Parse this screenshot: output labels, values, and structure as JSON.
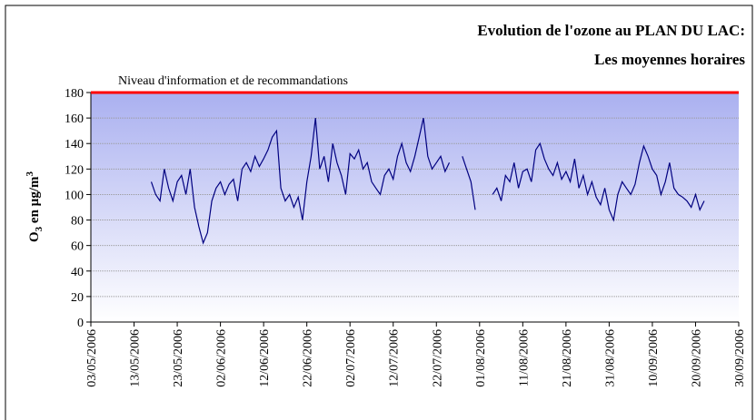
{
  "chart_data": {
    "type": "line",
    "title": [
      "Evolution de l'ozone au PLAN DU LAC:",
      "Les moyennes horaires"
    ],
    "ylabel": {
      "text": "O",
      "sub": "3",
      "mid": " en µg/m",
      "sup": "3"
    },
    "threshold": {
      "value": 180,
      "label": "Niveau d'information et de recommandations",
      "color": "#ff0000"
    },
    "xlim": [
      "03/05/2006",
      "30/09/2006"
    ],
    "xticks": [
      "03/05/2006",
      "13/05/2006",
      "23/05/2006",
      "02/06/2006",
      "12/06/2006",
      "22/06/2006",
      "02/07/2006",
      "12/07/2006",
      "22/07/2006",
      "01/08/2006",
      "11/08/2006",
      "21/08/2006",
      "31/08/2006",
      "10/09/2006",
      "20/09/2006",
      "30/09/2006"
    ],
    "ylim": [
      0,
      180
    ],
    "yticks": [
      0,
      20,
      40,
      60,
      80,
      100,
      120,
      140,
      160,
      180
    ],
    "grid": true,
    "x": [
      "17/05/2006",
      "18/05/2006",
      "19/05/2006",
      "20/05/2006",
      "21/05/2006",
      "22/05/2006",
      "23/05/2006",
      "24/05/2006",
      "25/05/2006",
      "26/05/2006",
      "27/05/2006",
      "28/05/2006",
      "29/05/2006",
      "30/05/2006",
      "31/05/2006",
      "01/06/2006",
      "02/06/2006",
      "03/06/2006",
      "04/06/2006",
      "05/06/2006",
      "06/06/2006",
      "07/06/2006",
      "08/06/2006",
      "09/06/2006",
      "10/06/2006",
      "11/06/2006",
      "12/06/2006",
      "13/06/2006",
      "14/06/2006",
      "15/06/2006",
      "16/06/2006",
      "17/06/2006",
      "18/06/2006",
      "19/06/2006",
      "20/06/2006",
      "21/06/2006",
      "22/06/2006",
      "23/06/2006",
      "24/06/2006",
      "25/06/2006",
      "26/06/2006",
      "27/06/2006",
      "28/06/2006",
      "29/06/2006",
      "30/06/2006",
      "01/07/2006",
      "02/07/2006",
      "03/07/2006",
      "04/07/2006",
      "05/07/2006",
      "06/07/2006",
      "07/07/2006",
      "08/07/2006",
      "09/07/2006",
      "10/07/2006",
      "11/07/2006",
      "12/07/2006",
      "13/07/2006",
      "14/07/2006",
      "15/07/2006",
      "16/07/2006",
      "17/07/2006",
      "18/07/2006",
      "19/07/2006",
      "20/07/2006",
      "21/07/2006",
      "22/07/2006",
      "23/07/2006",
      "24/07/2006",
      "25/07/2006",
      "26/07/2006",
      "27/07/2006",
      "28/07/2006",
      "29/07/2006",
      "30/07/2006",
      "31/07/2006",
      "01/08/2006",
      "02/08/2006",
      "03/08/2006",
      "04/08/2006",
      "05/08/2006",
      "06/08/2006",
      "07/08/2006",
      "08/08/2006",
      "09/08/2006",
      "10/08/2006",
      "11/08/2006",
      "12/08/2006",
      "13/08/2006",
      "14/08/2006",
      "15/08/2006",
      "16/08/2006",
      "17/08/2006",
      "18/08/2006",
      "19/08/2006",
      "20/08/2006",
      "21/08/2006",
      "22/08/2006",
      "23/08/2006",
      "24/08/2006",
      "25/08/2006",
      "26/08/2006",
      "27/08/2006",
      "28/08/2006",
      "29/08/2006",
      "30/08/2006",
      "31/08/2006",
      "01/09/2006",
      "02/09/2006",
      "03/09/2006",
      "04/09/2006",
      "05/09/2006",
      "06/09/2006",
      "07/09/2006",
      "08/09/2006",
      "09/09/2006",
      "10/09/2006",
      "11/09/2006",
      "12/09/2006",
      "13/09/2006",
      "14/09/2006",
      "15/09/2006",
      "16/09/2006",
      "17/09/2006",
      "18/09/2006",
      "19/09/2006",
      "20/09/2006",
      "21/09/2006",
      "22/09/2006"
    ],
    "series": [
      {
        "color": "#000080",
        "values": [
          110,
          100,
          95,
          120,
          105,
          95,
          110,
          115,
          100,
          120,
          90,
          75,
          62,
          70,
          95,
          105,
          110,
          100,
          108,
          112,
          95,
          120,
          125,
          118,
          130,
          122,
          128,
          135,
          145,
          150,
          105,
          95,
          100,
          90,
          98,
          80,
          110,
          130,
          160,
          120,
          130,
          110,
          140,
          125,
          115,
          100,
          132,
          128,
          135,
          120,
          125,
          110,
          105,
          100,
          115,
          120,
          112,
          130,
          140,
          125,
          118,
          130,
          145,
          160,
          130,
          120,
          125,
          130,
          118,
          125,
          null,
          null,
          130,
          120,
          110,
          88,
          null,
          null,
          null,
          100,
          105,
          95,
          115,
          110,
          125,
          105,
          118,
          120,
          110,
          135,
          140,
          128,
          120,
          115,
          125,
          112,
          118,
          110,
          128,
          105,
          115,
          100,
          110,
          98,
          92,
          105,
          88,
          80,
          100,
          110,
          105,
          100,
          108,
          125,
          138,
          130,
          120,
          115,
          100,
          110,
          125,
          105,
          100,
          98,
          95,
          90,
          100,
          88,
          95
        ]
      }
    ]
  }
}
